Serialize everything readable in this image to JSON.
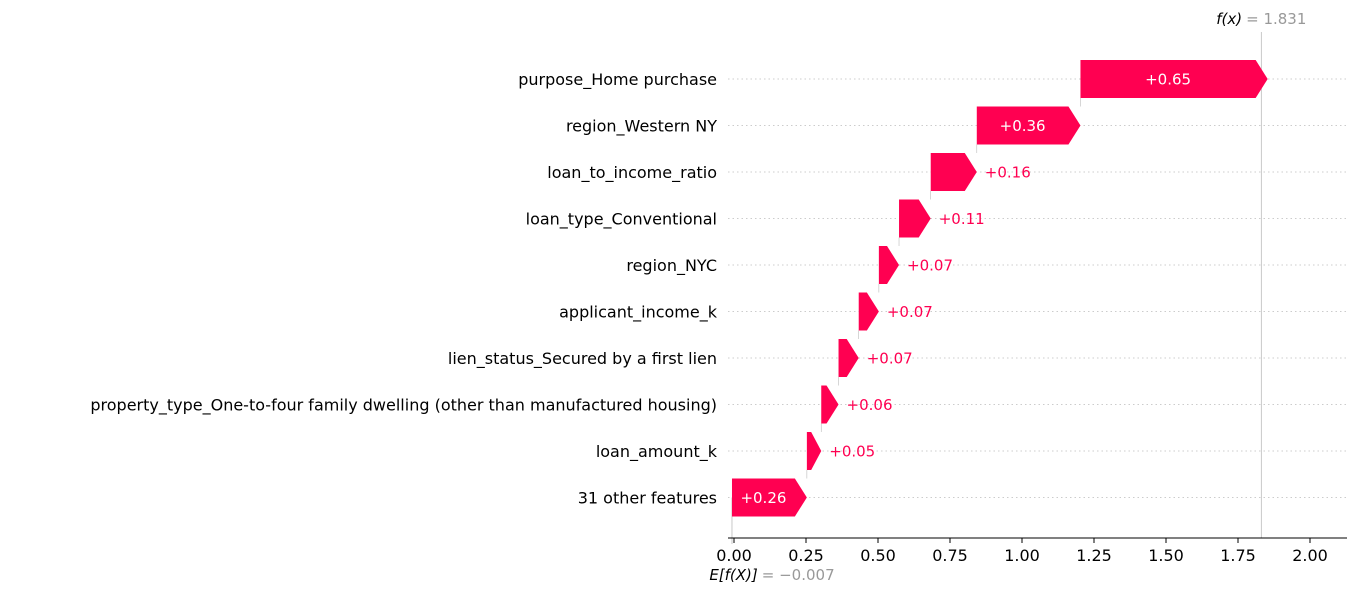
{
  "chart_data": {
    "type": "waterfall",
    "base_value": -0.007,
    "base_label_expr": "E[f(X)]",
    "base_label_value": "= −0.007",
    "output_value": 1.831,
    "output_label_expr": "f(x)",
    "output_label_value": "= 1.831",
    "xlim": [
      -0.02,
      2.12
    ],
    "xticks": [
      0.0,
      0.25,
      0.5,
      0.75,
      1.0,
      1.25,
      1.5,
      1.75,
      2.0
    ],
    "xtick_labels": [
      "0.00",
      "0.25",
      "0.50",
      "0.75",
      "1.00",
      "1.25",
      "1.50",
      "1.75",
      "2.00"
    ],
    "features": [
      {
        "name": "purpose_Home purchase",
        "value": 0.65,
        "label": "+0.65"
      },
      {
        "name": "region_Western NY",
        "value": 0.36,
        "label": "+0.36"
      },
      {
        "name": "loan_to_income_ratio",
        "value": 0.16,
        "label": "+0.16"
      },
      {
        "name": "loan_type_Conventional",
        "value": 0.11,
        "label": "+0.11"
      },
      {
        "name": "region_NYC",
        "value": 0.07,
        "label": "+0.07"
      },
      {
        "name": "applicant_income_k",
        "value": 0.07,
        "label": "+0.07"
      },
      {
        "name": "lien_status_Secured by a first lien",
        "value": 0.07,
        "label": "+0.07"
      },
      {
        "name": "property_type_One-to-four family dwelling (other than manufactured housing)",
        "value": 0.06,
        "label": "+0.06"
      },
      {
        "name": "loan_amount_k",
        "value": 0.05,
        "label": "+0.05"
      },
      {
        "name": "31 other features",
        "value": 0.26,
        "label": "+0.26"
      }
    ],
    "colors": {
      "positive": "#ff0051",
      "label_on_bar": "#ffffff",
      "grid": "#cccccc",
      "axis": "#000000"
    }
  }
}
